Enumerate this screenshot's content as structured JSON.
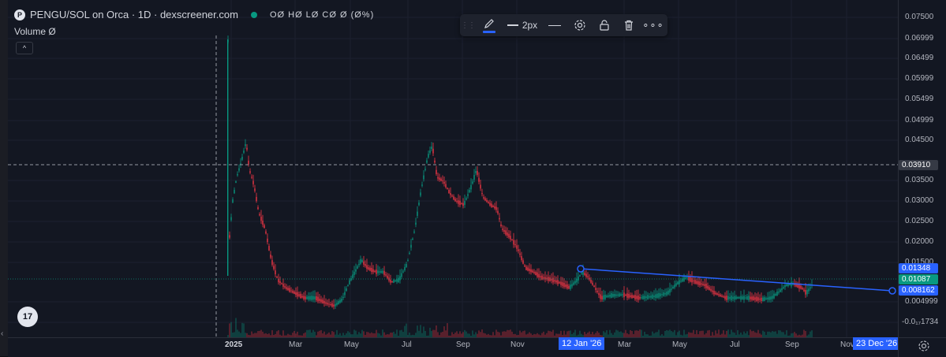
{
  "legend": {
    "symbol": "PENGU/SOL on Orca · 1D · dexscreener.com",
    "logo_letter": "P",
    "ohlc": "OØ HØ LØ CØ Ø (Ø%)",
    "volume_label": "Volume  Ø",
    "collapse_glyph": "^"
  },
  "drawing_toolbar": {
    "line_width_label": "2px",
    "items": [
      "pencil-icon",
      "line-width-selector",
      "line-style-selector",
      "settings-icon",
      "unlock-icon",
      "trash-icon",
      "more-icon"
    ],
    "accent": "#2962ff"
  },
  "price_axis": {
    "ticks": [
      "0.07500",
      "0.06999",
      "0.06499",
      "0.05999",
      "0.05499",
      "0.04999",
      "0.04500",
      "0.03500",
      "0.03000",
      "0.02500",
      "0.02000",
      "0.01500",
      "0.004999",
      "-0.0₁₇1734"
    ],
    "crosshair_tag": "0.03910",
    "trendline_start_tag": "0.01348",
    "last_price_tag": "0.01087",
    "trendline_end_tag": "0.008162",
    "colors": {
      "crosshair": "#363a45",
      "trendline": "#2962ff",
      "last": "#089981"
    }
  },
  "time_axis": {
    "ticks": [
      "2025",
      "Mar",
      "May",
      "Jul",
      "Sep",
      "Nov",
      "Mar",
      "May",
      "Jul",
      "Sep",
      "Nov"
    ],
    "start_tag": "12 Jan '26",
    "end_tag": "23 Dec '26"
  },
  "tv_logo": "17",
  "colors": {
    "up": "#089981",
    "down": "#f23645",
    "background": "#131722"
  }
}
